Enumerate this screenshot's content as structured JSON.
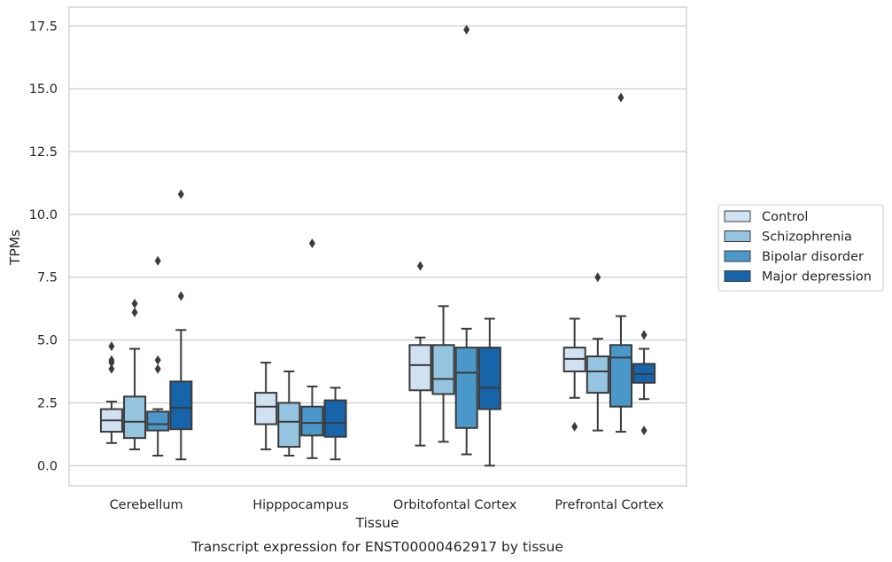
{
  "chart_data": {
    "type": "boxplot",
    "title": "",
    "xlabel": "Tissue",
    "ylabel": "TPMs",
    "caption": "Transcript expression for ENST00000462917 by tissue",
    "ylim": [
      -0.8,
      18.25
    ],
    "yticks": [
      0.0,
      2.5,
      5.0,
      7.5,
      10.0,
      12.5,
      15.0,
      17.5
    ],
    "ytick_labels": [
      "0.0",
      "2.5",
      "5.0",
      "7.5",
      "10.0",
      "12.5",
      "15.0",
      "17.5"
    ],
    "grid": "horizontal",
    "legend_position": "right",
    "categories": [
      "Cerebellum",
      "Hipppocampus",
      "Orbitofontal Cortex",
      "Prefrontal Cortex"
    ],
    "series": [
      {
        "name": "Control",
        "color": "#d0e1f2",
        "boxes": [
          {
            "whislo": 0.9,
            "q1": 1.35,
            "med": 1.8,
            "q3": 2.25,
            "whishi": 2.55,
            "fliers": [
              3.85,
              4.1,
              4.2,
              4.75
            ]
          },
          {
            "whislo": 0.65,
            "q1": 1.65,
            "med": 2.35,
            "q3": 2.9,
            "whishi": 4.1,
            "fliers": []
          },
          {
            "whislo": 0.8,
            "q1": 3.0,
            "med": 4.0,
            "q3": 4.8,
            "whishi": 5.1,
            "fliers": [
              7.95
            ]
          },
          {
            "whislo": 2.7,
            "q1": 3.75,
            "med": 4.25,
            "q3": 4.7,
            "whishi": 5.85,
            "fliers": [
              1.55
            ]
          }
        ]
      },
      {
        "name": "Schizophrenia",
        "color": "#94c4df",
        "boxes": [
          {
            "whislo": 0.65,
            "q1": 1.1,
            "med": 1.75,
            "q3": 2.75,
            "whishi": 4.65,
            "fliers": [
              6.1,
              6.45
            ]
          },
          {
            "whislo": 0.4,
            "q1": 0.75,
            "med": 1.75,
            "q3": 2.5,
            "whishi": 3.75,
            "fliers": []
          },
          {
            "whislo": 0.95,
            "q1": 2.85,
            "med": 3.45,
            "q3": 4.8,
            "whishi": 6.35,
            "fliers": []
          },
          {
            "whislo": 1.4,
            "q1": 2.9,
            "med": 3.75,
            "q3": 4.35,
            "whishi": 5.05,
            "fliers": [
              7.5
            ]
          }
        ]
      },
      {
        "name": "Bipolar disorder",
        "color": "#4a98c9",
        "boxes": [
          {
            "whislo": 0.4,
            "q1": 1.4,
            "med": 1.65,
            "q3": 2.15,
            "whishi": 2.25,
            "fliers": [
              3.85,
              4.2,
              8.15
            ]
          },
          {
            "whislo": 0.3,
            "q1": 1.2,
            "med": 1.7,
            "q3": 2.35,
            "whishi": 3.15,
            "fliers": [
              8.85
            ]
          },
          {
            "whislo": 0.45,
            "q1": 1.5,
            "med": 3.7,
            "q3": 4.7,
            "whishi": 5.45,
            "fliers": [
              17.35
            ]
          },
          {
            "whislo": 1.35,
            "q1": 2.35,
            "med": 4.3,
            "q3": 4.8,
            "whishi": 5.95,
            "fliers": [
              14.65
            ]
          }
        ]
      },
      {
        "name": "Major depression",
        "color": "#1764ab",
        "boxes": [
          {
            "whislo": 0.25,
            "q1": 1.45,
            "med": 2.3,
            "q3": 3.35,
            "whishi": 5.4,
            "fliers": [
              6.75,
              10.8
            ]
          },
          {
            "whislo": 0.25,
            "q1": 1.15,
            "med": 1.7,
            "q3": 2.6,
            "whishi": 3.1,
            "fliers": []
          },
          {
            "whislo": 0.0,
            "q1": 2.25,
            "med": 3.1,
            "q3": 4.7,
            "whishi": 5.85,
            "fliers": []
          },
          {
            "whislo": 2.65,
            "q1": 3.3,
            "med": 3.65,
            "q3": 4.05,
            "whishi": 4.65,
            "fliers": [
              1.4,
              5.2
            ]
          }
        ]
      }
    ]
  }
}
